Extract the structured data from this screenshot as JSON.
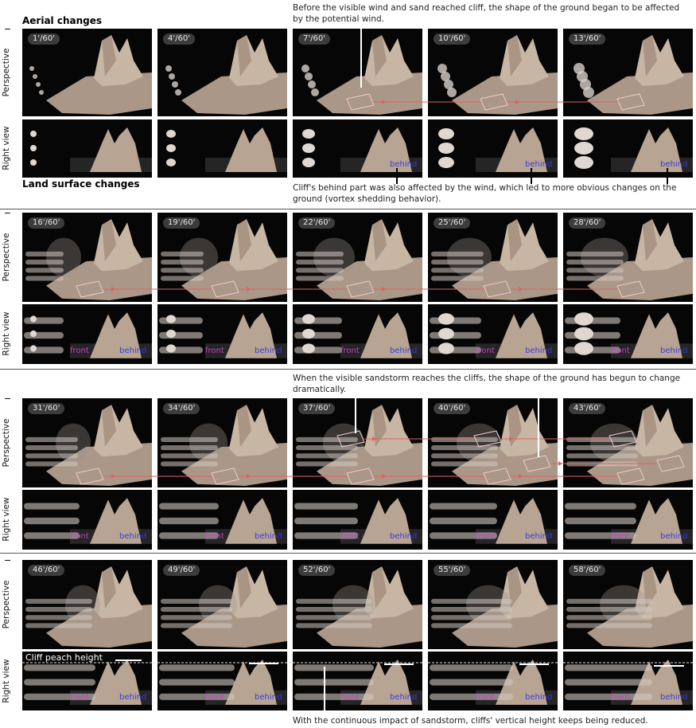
{
  "headers": {
    "aerial": "Aerial changes",
    "land": "Land surface changes"
  },
  "view_labels": {
    "perspective": "Perspective",
    "right": "Right view"
  },
  "labels": {
    "front": "front",
    "behind": "behind",
    "cliff_peak": "Cliff peach height"
  },
  "annotations": {
    "top": "Before the visible wind and sand reached cliff, the shape of the ground began to be affected by the potential wind.",
    "behind": "Cliff's behind part was also affected by the wind, which led to more obvious changes on the ground (vortex  shedding behavior).",
    "mid": "When the visible sandstorm reaches the cliffs, the shape of the ground has begun to change dramatically.",
    "bottom": "With the continuous impact of sandstorm, cliffs' vertical height keeps being reduced."
  },
  "rows": [
    {
      "times": [
        "1'/60'",
        "4'/60'",
        "7'/60'",
        "10'/60'",
        "13'/60'"
      ]
    },
    {
      "times": [
        "16'/60'",
        "19'/60'",
        "22'/60'",
        "25'/60'",
        "28'/60'"
      ]
    },
    {
      "times": [
        "31'/60'",
        "34'/60'",
        "37'/60'",
        "40'/60'",
        "43'/60'"
      ]
    },
    {
      "times": [
        "46'/60'",
        "49'/60'",
        "52'/60'",
        "55'/60'",
        "58'/60'"
      ]
    }
  ],
  "colors": {
    "panel_bg": "#060606",
    "terrain": "#b8a492",
    "arrow": "#e06060",
    "front": "#c040c0",
    "behind": "#3a3ae0"
  }
}
